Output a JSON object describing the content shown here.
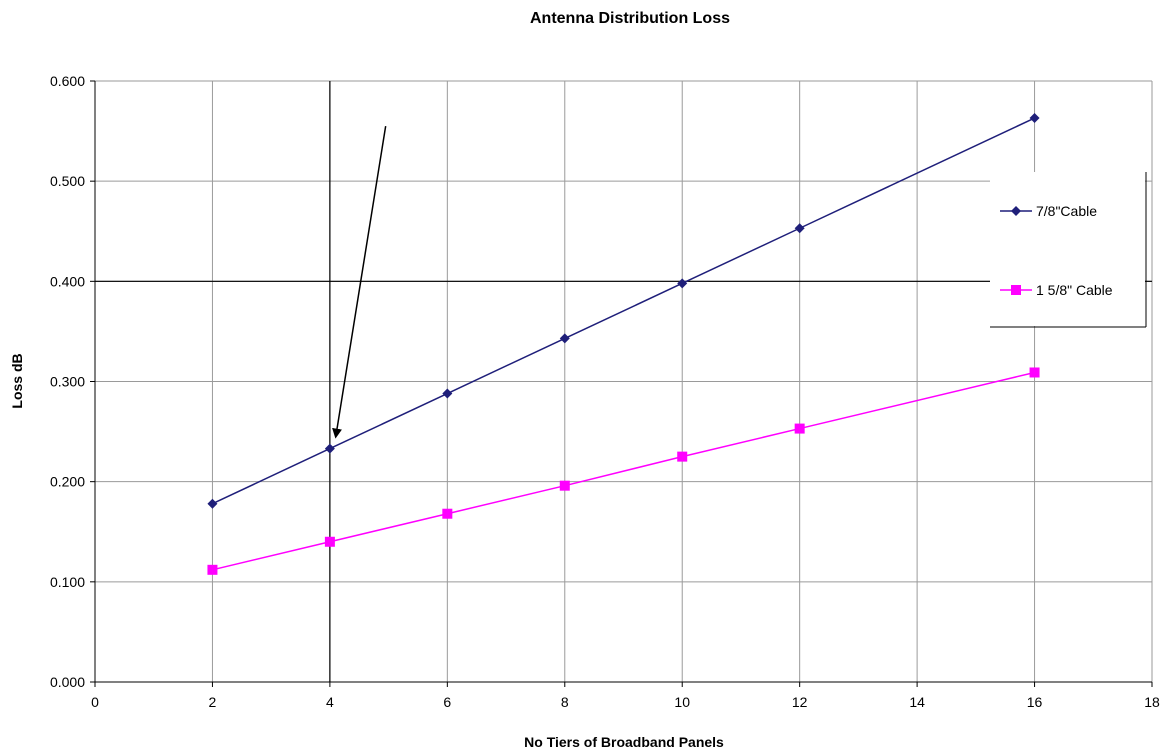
{
  "chart_data": {
    "type": "line",
    "title": "Antenna Distribution Loss",
    "xlabel": "No Tiers of Broadband Panels",
    "ylabel": "Loss dB",
    "xlim": [
      0,
      18
    ],
    "ylim": [
      0,
      0.6
    ],
    "x_ticks": [
      "0",
      "2",
      "4",
      "6",
      "8",
      "10",
      "12",
      "14",
      "16",
      "18"
    ],
    "y_ticks": [
      "0.000",
      "0.100",
      "0.200",
      "0.300",
      "0.400",
      "0.500",
      "0.600"
    ],
    "grid": true,
    "legend_position": "right",
    "series": [
      {
        "name": "7/8\"Cable",
        "color": "#1f1f7a",
        "marker": "diamond",
        "x": [
          2,
          4,
          6,
          8,
          10,
          12,
          16
        ],
        "values": [
          0.178,
          0.233,
          0.288,
          0.343,
          0.398,
          0.453,
          0.563
        ]
      },
      {
        "name": "1 5/8\" Cable",
        "color": "#ff00ff",
        "marker": "square",
        "x": [
          2,
          4,
          6,
          8,
          10,
          12,
          16
        ],
        "values": [
          0.112,
          0.14,
          0.168,
          0.196,
          0.225,
          0.253,
          0.309
        ]
      }
    ],
    "annotations": [
      {
        "type": "arrow",
        "from": [
          4.95,
          0.555
        ],
        "to": [
          4.1,
          0.245
        ]
      },
      {
        "type": "vline",
        "x": 4
      },
      {
        "type": "hline",
        "y": 0.4
      }
    ]
  }
}
